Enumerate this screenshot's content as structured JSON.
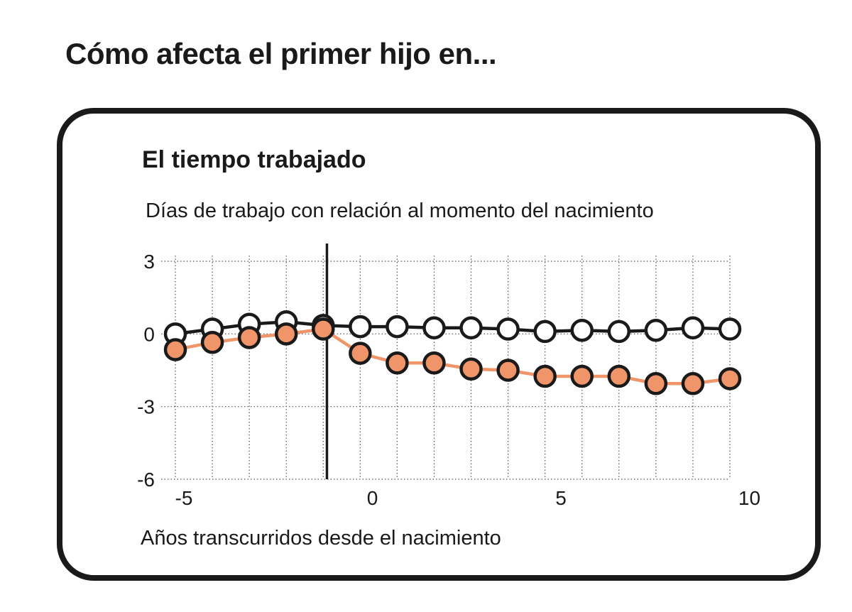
{
  "header": {
    "title": "Cómo afecta el primer hijo en..."
  },
  "chart_data": {
    "type": "line",
    "title": "El tiempo trabajado",
    "subtitle": "Días de trabajo con relación al momento del nacimiento",
    "xlabel": "Años transcurridos desde el nacimiento",
    "ylabel": "",
    "xlim": [
      -5.3,
      10
    ],
    "ylim": [
      -6,
      3
    ],
    "x_ticks": [
      -5,
      0,
      5,
      10
    ],
    "y_ticks": [
      3,
      0,
      -3,
      -6
    ],
    "event_marker_x": -0.9,
    "grid": true,
    "x": [
      -5,
      -4,
      -3,
      -2,
      -1,
      0,
      1,
      2,
      3,
      4,
      5,
      6,
      7,
      8,
      9,
      10
    ],
    "series": [
      {
        "color": "#1a1a1a",
        "marker_fill": "#ffffff",
        "values": [
          0.0,
          0.2,
          0.4,
          0.5,
          0.35,
          0.3,
          0.3,
          0.25,
          0.25,
          0.2,
          0.1,
          0.15,
          0.1,
          0.15,
          0.25,
          0.2
        ]
      },
      {
        "color": "#f0956a",
        "marker_fill": "#f0956a",
        "values": [
          -0.65,
          -0.35,
          -0.15,
          0.0,
          0.2,
          -0.8,
          -1.2,
          -1.2,
          -1.45,
          -1.5,
          -1.75,
          -1.75,
          -1.75,
          -2.05,
          -2.05,
          -1.85
        ]
      }
    ]
  }
}
